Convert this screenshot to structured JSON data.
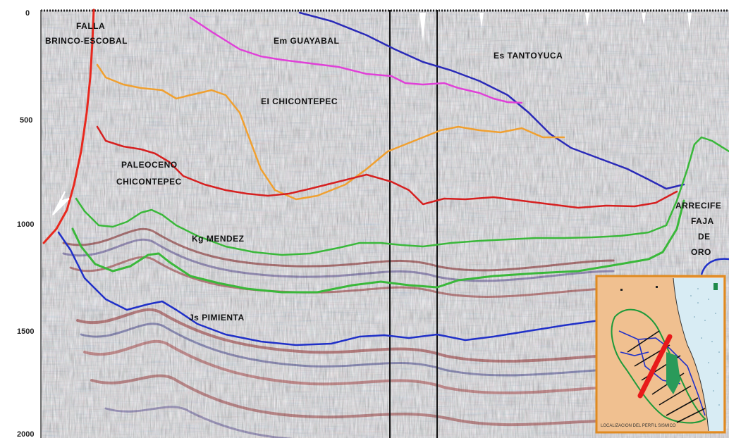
{
  "depth_axis": {
    "ticks": [
      "0",
      "500",
      "1000",
      "1500",
      "2000"
    ]
  },
  "units": {
    "falla_line1": "FALLA",
    "falla_line2": "BRINCO-ESCOBAL",
    "guayabal": "Em GUAYABAL",
    "tantoyuca": "Es TANTOYUCA",
    "chicontepec_eoc": "EI CHICONTEPEC",
    "paleoceno_line1": "PALEOCENO",
    "paleoceno_line2": "CHICONTEPEC",
    "mendez": "Kg MENDEZ",
    "pimienta": "Js PIMIENTA",
    "arrecife_line1": "ARRECIFE",
    "arrecife_line2": "FAJA",
    "arrecife_line3": "DE",
    "arrecife_line4": "ORO"
  },
  "horizon_colors": {
    "fault": "#e8281e",
    "guayabal": "#e040d8",
    "tantoyuca": "#2a2ab8",
    "chicontepec_eoc": "#f0a030",
    "paleoceno": "#d62020",
    "mendez": "#3ab83a",
    "arrecife": "#3ab83a",
    "pimienta": "#2030c8"
  },
  "inset_map": {
    "caption": "LOCALIZACION DEL PERFIL SISMICO"
  }
}
